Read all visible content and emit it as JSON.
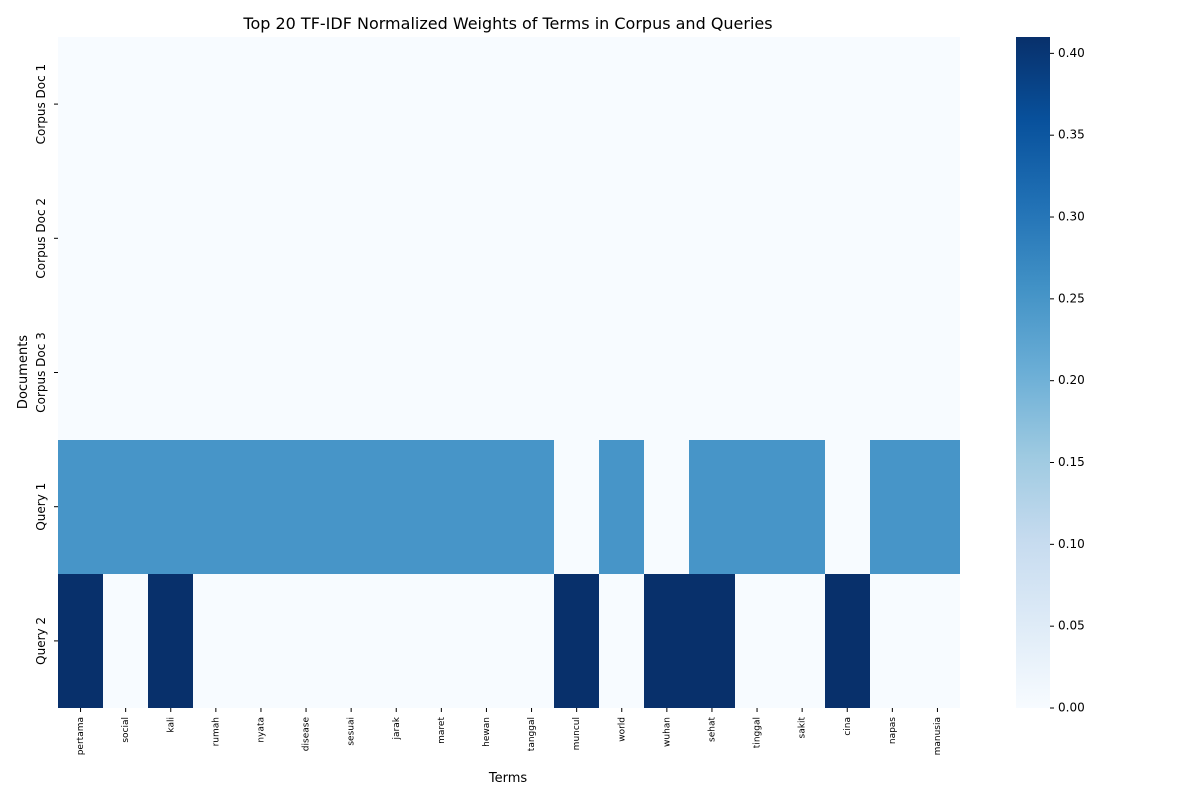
{
  "chart_data": {
    "type": "heatmap",
    "title": "Top 20 TF-IDF Normalized Weights of Terms in Corpus and Queries",
    "xlabel": "Terms",
    "ylabel": "Documents",
    "columns": [
      "pertama",
      "social",
      "kali",
      "rumah",
      "nyata",
      "disease",
      "sesuai",
      "jarak",
      "maret",
      "hewan",
      "tanggal",
      "muncul",
      "world",
      "wuhan",
      "sehat",
      "tinggal",
      "sakit",
      "cina",
      "napas",
      "manusia"
    ],
    "rows": [
      "Corpus Doc 1",
      "Corpus Doc 2",
      "Corpus Doc 3",
      "Query 1",
      "Query 2"
    ],
    "values": [
      [
        0,
        0,
        0,
        0,
        0,
        0,
        0,
        0,
        0,
        0,
        0,
        0,
        0,
        0,
        0,
        0,
        0,
        0,
        0,
        0
      ],
      [
        0,
        0,
        0,
        0,
        0,
        0,
        0,
        0,
        0,
        0,
        0,
        0,
        0,
        0,
        0,
        0,
        0,
        0,
        0,
        0
      ],
      [
        0,
        0,
        0,
        0,
        0,
        0,
        0,
        0,
        0,
        0,
        0,
        0,
        0,
        0,
        0,
        0,
        0,
        0,
        0,
        0
      ],
      [
        0.25,
        0.25,
        0.25,
        0.25,
        0.25,
        0.25,
        0.25,
        0.25,
        0.25,
        0.25,
        0.25,
        0,
        0.25,
        0,
        0.25,
        0.25,
        0.25,
        0,
        0.25,
        0.25
      ],
      [
        0.41,
        0,
        0.41,
        0,
        0,
        0,
        0,
        0,
        0,
        0,
        0,
        0.41,
        0,
        0.41,
        0.41,
        0,
        0,
        0.41,
        0,
        0
      ]
    ],
    "colormap": "Blues",
    "colorbar": {
      "min": 0,
      "max": 0.41,
      "ticks": [
        0.0,
        0.05,
        0.1,
        0.15,
        0.2,
        0.25,
        0.3,
        0.35,
        0.4
      ],
      "tick_labels": [
        "0.00",
        "0.05",
        "0.10",
        "0.15",
        "0.20",
        "0.25",
        "0.30",
        "0.35",
        "0.40"
      ]
    },
    "colors": {
      "low": "#f7fbff",
      "high": "#08306b"
    }
  }
}
